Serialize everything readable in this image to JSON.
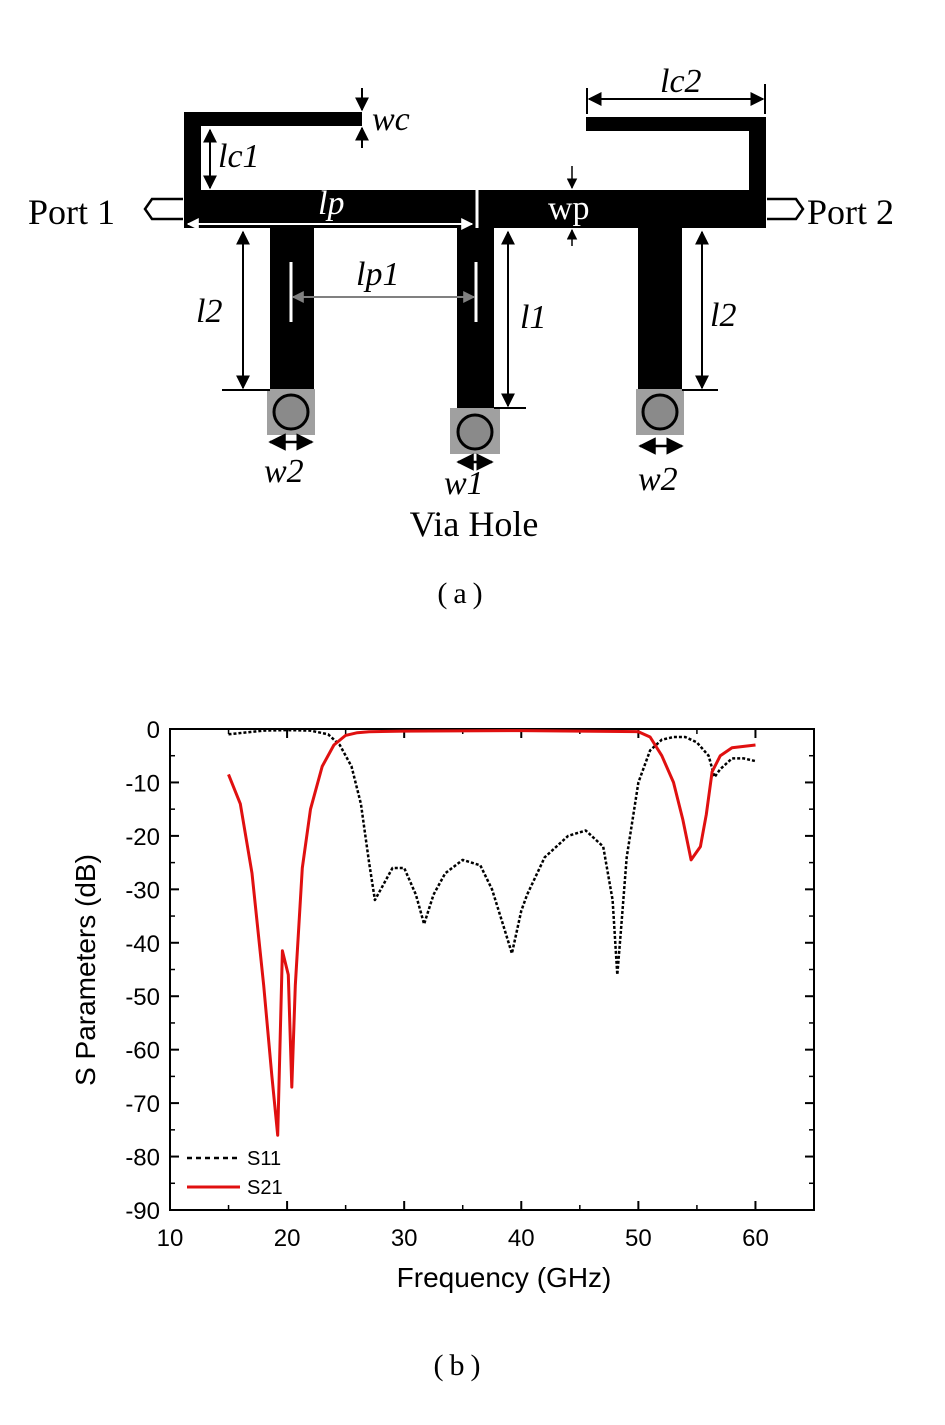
{
  "figure_a": {
    "labels": {
      "port1": "Port 1",
      "port2": "Port 2",
      "wc": "wc",
      "lc1": "lc1",
      "lc2": "lc2",
      "lp": "lp",
      "wp": "wp",
      "lp1": "lp1",
      "l1": "l1",
      "l2_left": "l2",
      "l2_right": "l2",
      "w1": "w1",
      "w2_left": "w2",
      "w2_right": "w2",
      "via_hole": "Via Hole"
    },
    "caption": "(a)",
    "colors": {
      "metal": "#000000",
      "via_pad": "#a0a0a0",
      "via_fill": "#8a8a8a",
      "dim_gray": "#808080"
    }
  },
  "figure_b": {
    "caption": "(b)",
    "chart_data": {
      "type": "line",
      "xlabel": "Frequency (GHz)",
      "ylabel": "S Parameters (dB)",
      "xlim": [
        10,
        65
      ],
      "ylim": [
        -90,
        0
      ],
      "xticks": [
        10,
        20,
        30,
        40,
        50,
        60
      ],
      "yticks": [
        0,
        -10,
        -20,
        -30,
        -40,
        -50,
        -60,
        -70,
        -80,
        -90
      ],
      "grid": false,
      "legend_position": "bottom-left",
      "series": [
        {
          "name": "S11",
          "color": "#000000",
          "style": "dashed",
          "x": [
            15,
            18,
            20,
            22,
            23.5,
            24.5,
            25.5,
            26.3,
            27,
            27.5,
            28,
            29,
            30,
            31,
            31.7,
            32.5,
            33.5,
            35,
            36.5,
            37.5,
            38.5,
            39.2,
            39.6,
            40,
            40.5,
            42,
            44,
            45.5,
            47,
            47.8,
            48.2,
            48.5,
            49,
            50,
            51,
            52,
            53,
            54,
            55,
            56,
            56.5,
            57,
            58,
            59,
            60
          ],
          "y": [
            -1,
            -0.3,
            -0.2,
            -0.3,
            -1,
            -3,
            -7,
            -14,
            -25,
            -32,
            -30,
            -26,
            -26,
            -31,
            -36.5,
            -31,
            -27,
            -24.5,
            -25.5,
            -30,
            -37,
            -42,
            -38,
            -34,
            -31,
            -24,
            -20,
            -19,
            -22,
            -32,
            -46,
            -38,
            -24,
            -10,
            -4,
            -2,
            -1.5,
            -1.5,
            -2.5,
            -5,
            -9,
            -7.5,
            -5.5,
            -5.5,
            -6
          ]
        },
        {
          "name": "S21",
          "color": "#e01010",
          "style": "solid",
          "x": [
            15,
            16,
            17,
            18,
            18.7,
            19.2,
            19.6,
            20.1,
            20.4,
            20.7,
            21.3,
            22,
            23,
            24,
            25,
            26,
            27,
            30,
            40,
            50,
            51,
            52,
            53,
            53.8,
            54.5,
            55.3,
            55.8,
            56.3,
            57,
            58,
            60
          ],
          "y": [
            -8.5,
            -14,
            -27,
            -48,
            -65,
            -76,
            -41.5,
            -46,
            -67,
            -48,
            -26,
            -15,
            -7,
            -3,
            -1.2,
            -0.7,
            -0.5,
            -0.4,
            -0.3,
            -0.5,
            -1.5,
            -5,
            -10,
            -17,
            -24.5,
            -22,
            -16,
            -8,
            -5,
            -3.5,
            -3
          ]
        }
      ]
    }
  }
}
